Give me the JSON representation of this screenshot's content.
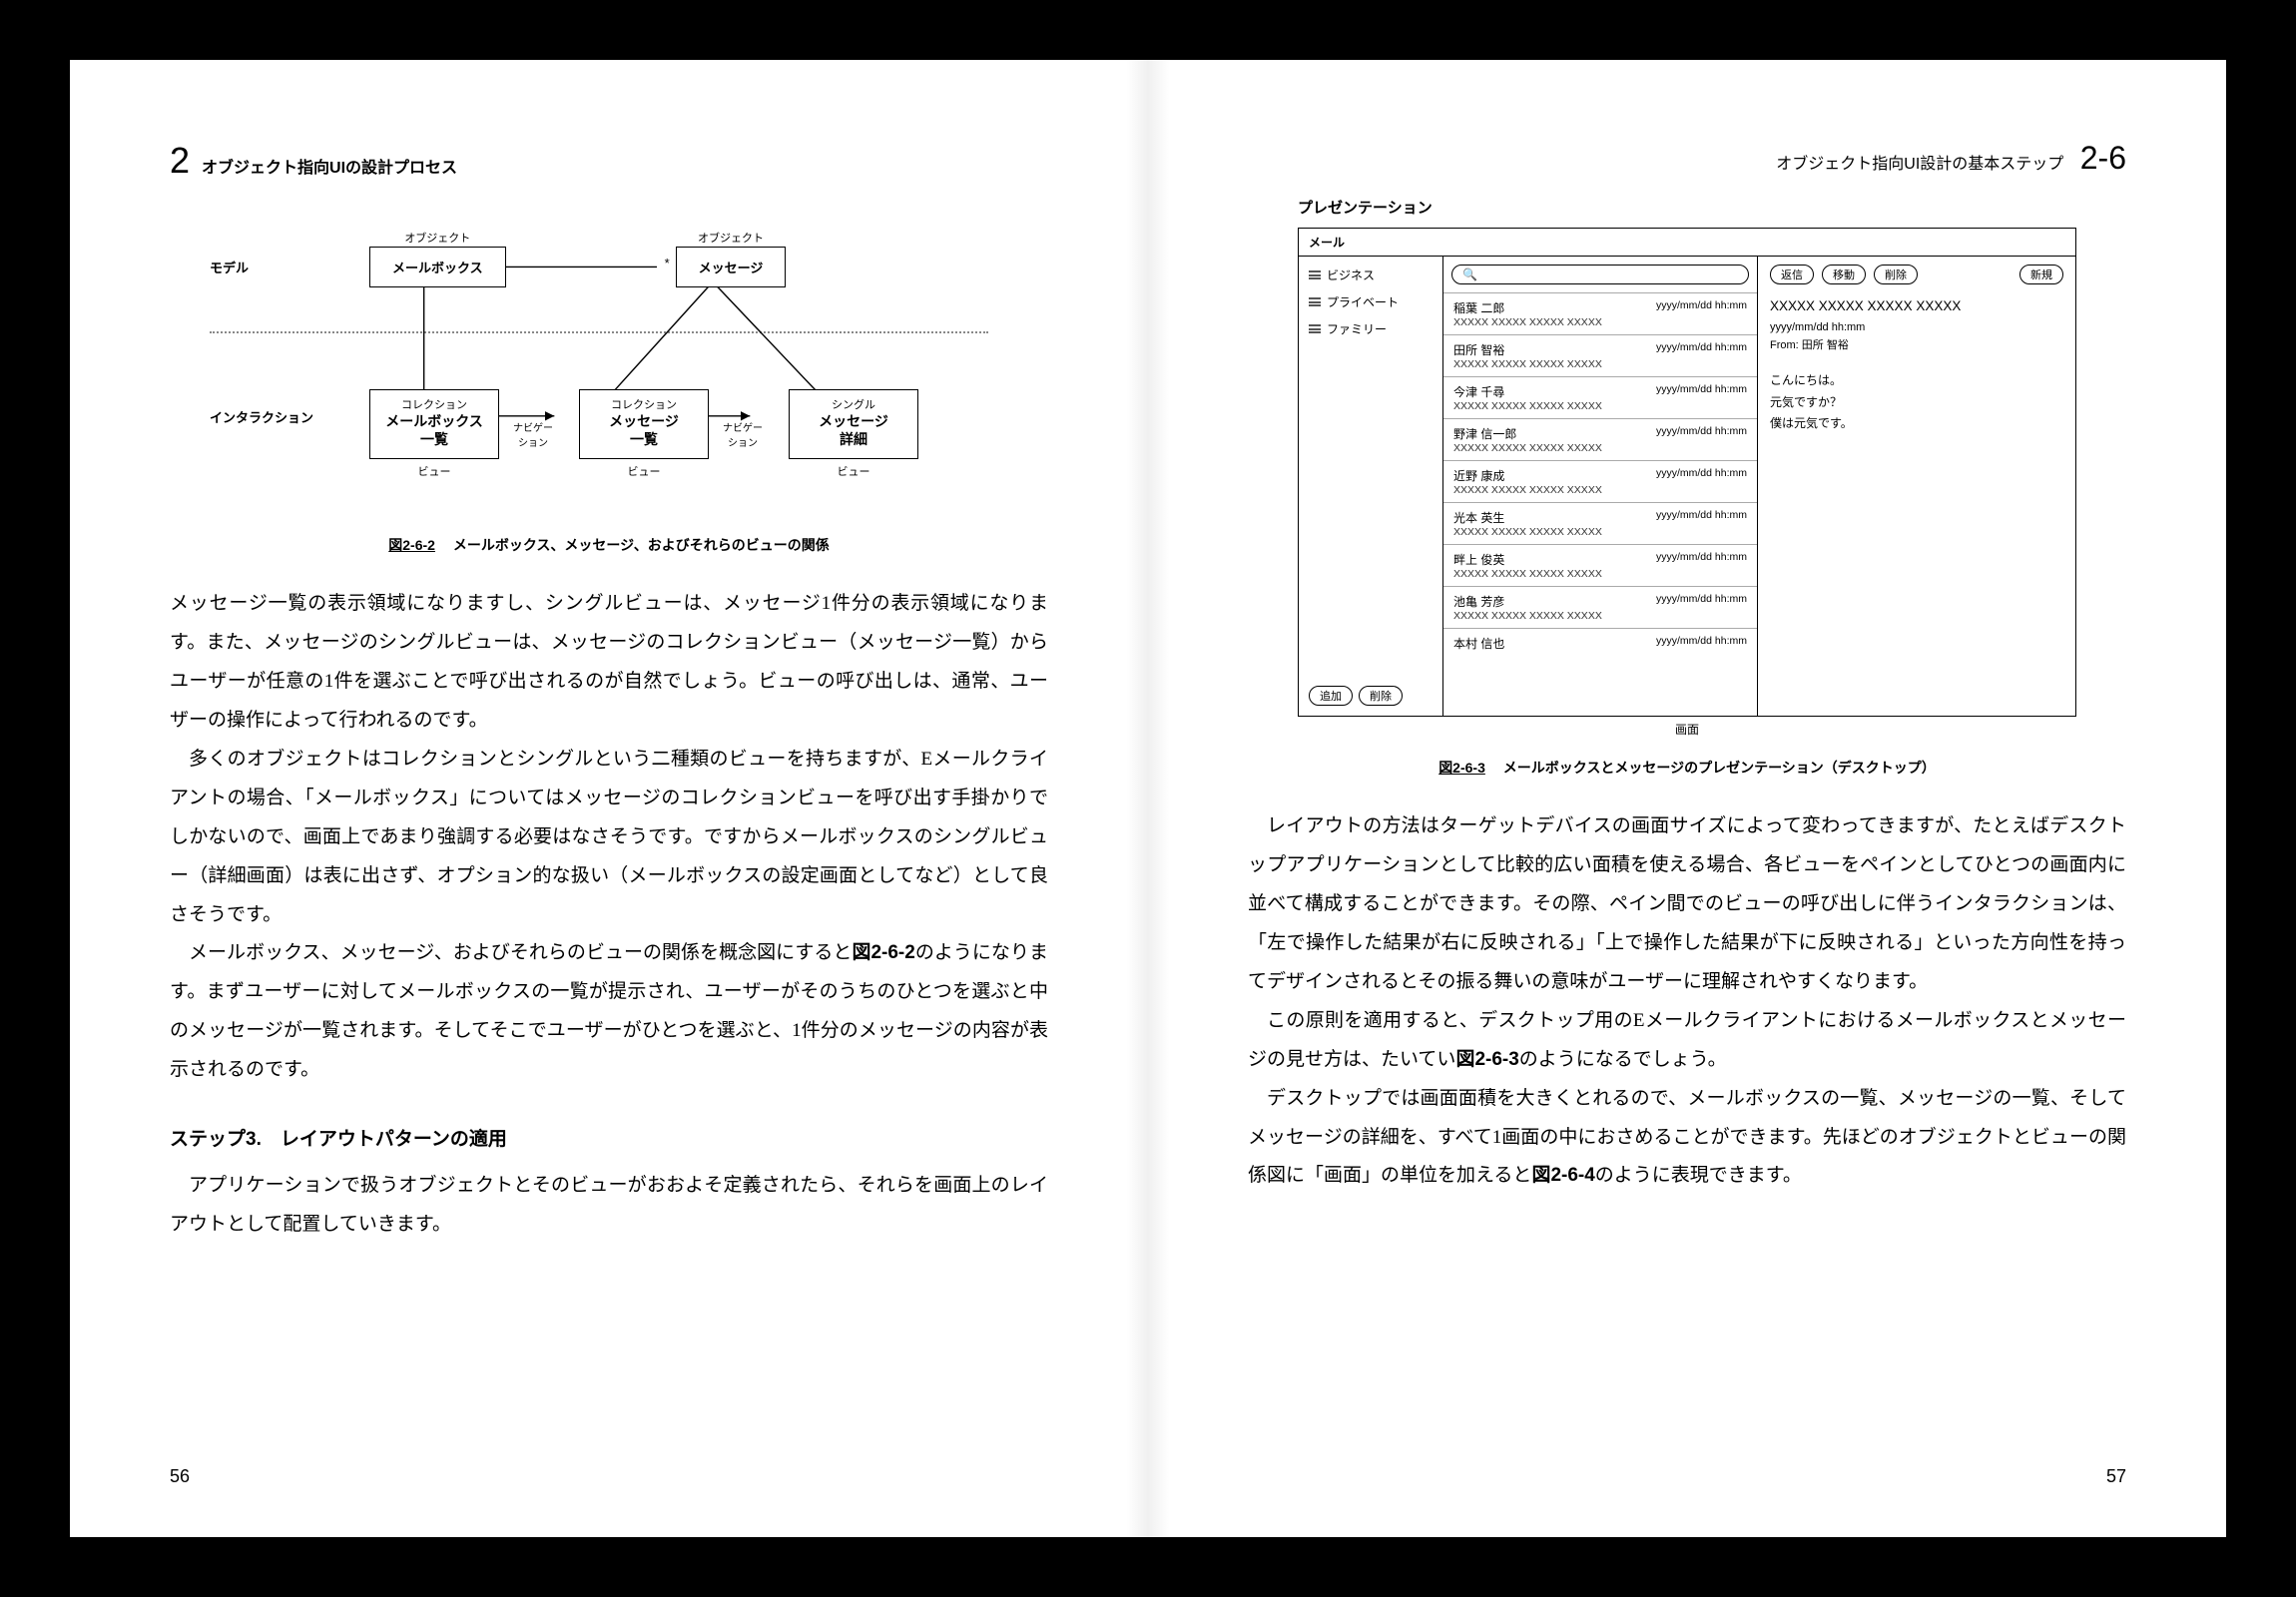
{
  "left": {
    "header": {
      "chapter": "2",
      "title": "オブジェクト指向UIの設計プロセス"
    },
    "diagram": {
      "row_model": "モデル",
      "row_interaction": "インタラクション",
      "obj_label": "オブジェクト",
      "mailbox": "メールボックス",
      "message": "メッセージ",
      "star": "*",
      "collection": "コレクション",
      "single": "シングル",
      "view_mailbox_list": "メールボックス\n一覧",
      "view_msg_list": "メッセージ\n一覧",
      "view_msg_detail": "メッセージ\n詳細",
      "nav": "ナビゲー\nション",
      "view": "ビュー"
    },
    "fig_caption": {
      "num": "図2-6-2",
      "text": "メールボックス、メッセージ、およびそれらのビューの関係"
    },
    "para1": "メッセージ一覧の表示領域になりますし、シングルビューは、メッセージ1件分の表示領域になります。また、メッセージのシングルビューは、メッセージのコレクションビュー（メッセージ一覧）からユーザーが任意の1件を選ぶことで呼び出されるのが自然でしょう。ビューの呼び出しは、通常、ユーザーの操作によって行われるのです。",
    "para2": "多くのオブジェクトはコレクションとシングルという二種類のビューを持ちますが、Eメールクライアントの場合、「メールボックス」についてはメッセージのコレクションビューを呼び出す手掛かりでしかないので、画面上であまり強調する必要はなさそうです。ですからメールボックスのシングルビュー（詳細画面）は表に出さず、オプション的な扱い（メールボックスの設定画面としてなど）として良さそうです。",
    "para3a": "メールボックス、メッセージ、およびそれらのビューの関係を概念図にすると",
    "para3b": "図2-6-2",
    "para3c": "のようになります。まずユーザーに対してメールボックスの一覧が提示され、ユーザーがそのうちのひとつを選ぶと中のメッセージが一覧されます。そしてそこでユーザーがひとつを選ぶと、1件分のメッセージの内容が表示されるのです。",
    "step_head": "ステップ3.　レイアウトパターンの適用",
    "para4": "アプリケーションで扱うオブジェクトとそのビューがおおよそ定義されたら、それらを画面上のレイアウトとして配置していきます。",
    "page_num": "56"
  },
  "right": {
    "header": {
      "title": "オブジェクト指向UI設計の基本ステップ",
      "section": "2-6"
    },
    "wf_title": "プレゼンテーション",
    "wf": {
      "header": "メール",
      "folders": [
        "ビジネス",
        "プライベート",
        "ファミリー"
      ],
      "side_btns": [
        "追加",
        "削除"
      ],
      "top_btns": [
        "返信",
        "移動",
        "削除"
      ],
      "new_btn": "新規",
      "items": [
        {
          "name": "稲葉 二郎",
          "date": "yyyy/mm/dd hh:mm",
          "sub": "XXXXX XXXXX XXXXX XXXXX"
        },
        {
          "name": "田所 智裕",
          "date": "yyyy/mm/dd hh:mm",
          "sub": "XXXXX XXXXX XXXXX XXXXX"
        },
        {
          "name": "今津 千尋",
          "date": "yyyy/mm/dd hh:mm",
          "sub": "XXXXX XXXXX XXXXX XXXXX"
        },
        {
          "name": "野津 信一郎",
          "date": "yyyy/mm/dd hh:mm",
          "sub": "XXXXX XXXXX XXXXX XXXXX"
        },
        {
          "name": "近野 康成",
          "date": "yyyy/mm/dd hh:mm",
          "sub": "XXXXX XXXXX XXXXX XXXXX"
        },
        {
          "name": "光本 英生",
          "date": "yyyy/mm/dd hh:mm",
          "sub": "XXXXX XXXXX XXXXX XXXXX"
        },
        {
          "name": "畔上 俊英",
          "date": "yyyy/mm/dd hh:mm",
          "sub": "XXXXX XXXXX XXXXX XXXXX"
        },
        {
          "name": "池亀 芳彦",
          "date": "yyyy/mm/dd hh:mm",
          "sub": "XXXXX XXXXX XXXXX XXXXX"
        },
        {
          "name": "本村 信也",
          "date": "yyyy/mm/dd hh:mm",
          "sub": ""
        }
      ],
      "detail": {
        "title": "XXXXX XXXXX XXXXX XXXXX",
        "meta1": "yyyy/mm/dd hh:mm",
        "meta2": "From: 田所 智裕",
        "body1": "こんにちは。",
        "body2": "元気ですか？",
        "body3": "僕は元気です。"
      },
      "under": "画面"
    },
    "fig_caption": {
      "num": "図2-6-3",
      "text": "メールボックスとメッセージのプレゼンテーション（デスクトップ）"
    },
    "para1": "レイアウトの方法はターゲットデバイスの画面サイズによって変わってきますが、たとえばデスクトップアプリケーションとして比較的広い面積を使える場合、各ビューをペインとしてひとつの画面内に並べて構成することができます。その際、ペイン間でのビューの呼び出しに伴うインタラクションは、「左で操作した結果が右に反映される」「上で操作した結果が下に反映される」といった方向性を持ってデザインされるとその振る舞いの意味がユーザーに理解されやすくなります。",
    "para2a": "この原則を適用すると、デスクトップ用のEメールクライアントにおけるメールボックスとメッセージの見せ方は、たいてい",
    "para2b": "図2-6-3",
    "para2c": "のようになるでしょう。",
    "para3a": "デスクトップでは画面面積を大きくとれるので、メールボックスの一覧、メッセージの一覧、そしてメッセージの詳細を、すべて1画面の中におさめることができます。先ほどのオブジェクトとビューの関係図に「画面」の単位を加えると",
    "para3b": "図2-6-4",
    "para3c": "のように表現できます。",
    "page_num": "57"
  }
}
